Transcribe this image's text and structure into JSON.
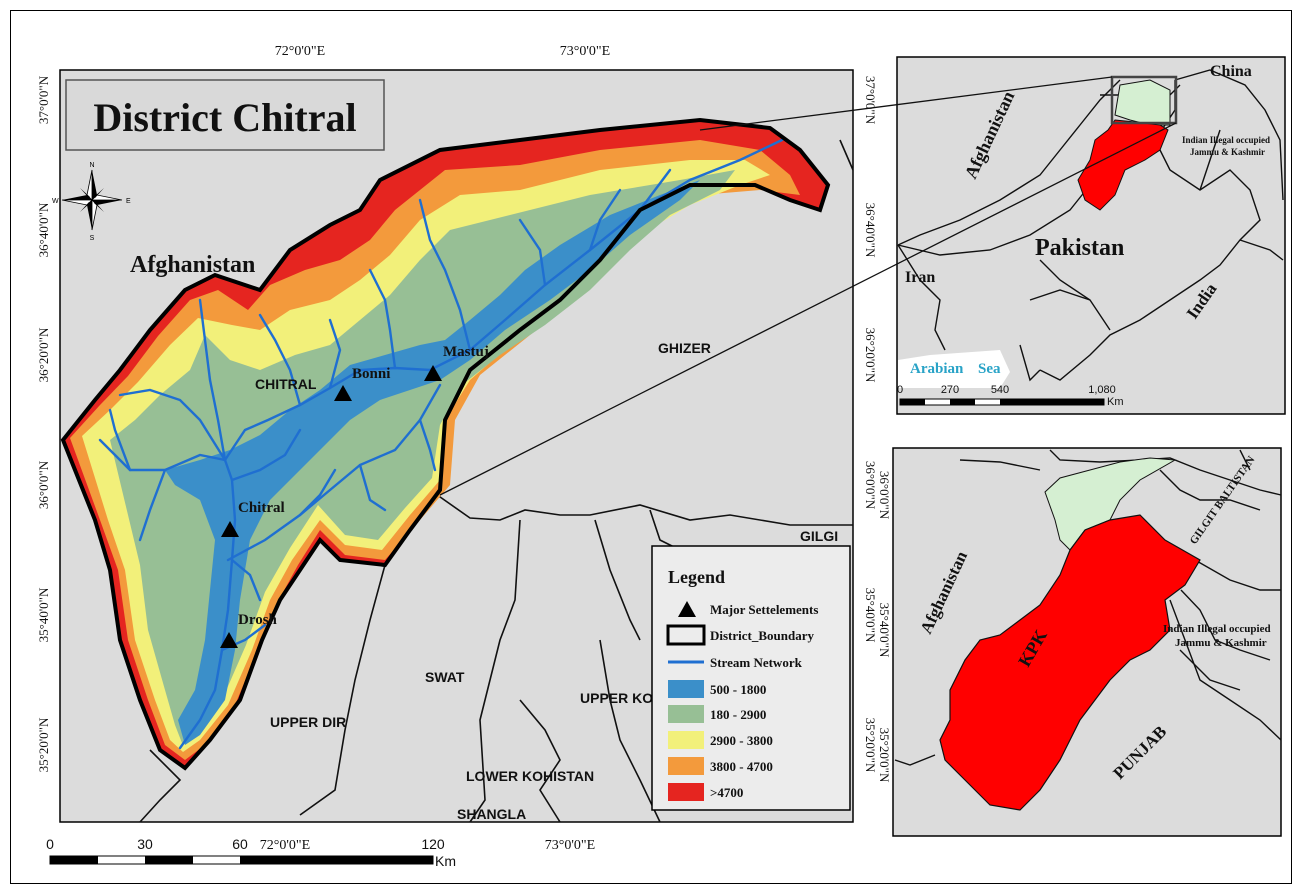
{
  "main_map": {
    "title": "District Chitral",
    "top_ticks": [
      "72°0'0\"E",
      "73°0'0\"E"
    ],
    "bottom_ticks": [
      "72°0'0\"E",
      "73°0'0\"E"
    ],
    "left_ticks": [
      "37°0'0\"N",
      "36°40'0\"N",
      "36°20'0\"N",
      "36°0'0\"N",
      "35°40'0\"N",
      "35°20'0\"N"
    ],
    "right_ticks": [
      "37°0'0\"N",
      "36°40'0\"N",
      "36°20'0\"N",
      "36°0'0\"N",
      "35°40'0\"N",
      "35°20'0\"N"
    ],
    "country_label": "Afghanistan",
    "district_labels": [
      "CHITRAL",
      "GHIZER",
      "UPPER DIR",
      "SWAT",
      "UPPER KO",
      "LOWER KOHISTAN",
      "SHANGLA",
      "GILGI"
    ],
    "settlements": [
      "Mastuj",
      "Bonni",
      "Chitral",
      "Drosh"
    ],
    "scale_labels": [
      "0",
      "30",
      "60",
      "120"
    ],
    "scale_unit": "Km",
    "north_arrow": {
      "n": "N",
      "s": "S",
      "e": "E",
      "w": "W",
      "icon": "compass-rose-icon"
    }
  },
  "legend": {
    "title": "Legend",
    "items": [
      {
        "label": "Major Settelements",
        "symbol": "triangle",
        "color": "#000000"
      },
      {
        "label": "District_Boundary",
        "symbol": "box",
        "color": "#000000"
      },
      {
        "label": "Stream Network",
        "symbol": "line",
        "color": "#1f6fd1"
      },
      {
        "label": "500 - 1800",
        "symbol": "swatch",
        "color": "#3b8fc9"
      },
      {
        "label": "180 - 2900",
        "symbol": "swatch",
        "color": "#97bf95"
      },
      {
        "label": "2900 - 3800",
        "symbol": "swatch",
        "color": "#f2f07a"
      },
      {
        "label": "3800 - 4700",
        "symbol": "swatch",
        "color": "#f39a3c"
      },
      {
        "label": ">4700",
        "symbol": "swatch",
        "color": "#e52520"
      }
    ]
  },
  "inset_pakistan": {
    "labels": {
      "china": "China",
      "afghanistan": "Afghanistan",
      "iiojk_1": "Indian Illegal occupied",
      "iiojk_2": "Jammu & Kashmir",
      "pakistan": "Pakistan",
      "iran": "Iran",
      "india": "India",
      "arabian": "Arabian",
      "sea": "Sea"
    },
    "scale_labels": [
      "0",
      "270",
      "540",
      "1,080"
    ],
    "scale_unit": "Km",
    "highlight_color": "#ff0000"
  },
  "inset_kpk": {
    "labels": {
      "afghanistan": "Afghanistan",
      "gilgit": "GILGIT BALTISTAN",
      "iiojk_1": "Indian Illegal occupied",
      "iiojk_2": "Jammu & Kashmir",
      "kpk": "KPK",
      "punjab": "PUNJAB"
    },
    "right_ticks": [
      "36°0'0\"N",
      "35°40'0\"N",
      "35°20'0\"N"
    ],
    "kpk_color": "#ff0000",
    "gb_color": "#d5efd2"
  },
  "colors": {
    "background": "#dcdcdc",
    "sea": "#29a3c7",
    "water": "#1f6fd1"
  }
}
